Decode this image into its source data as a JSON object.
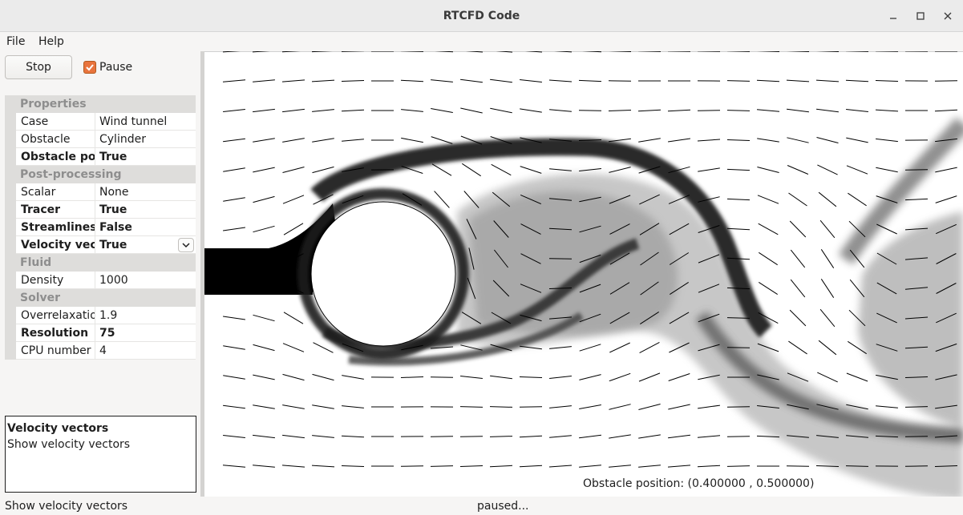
{
  "window": {
    "title": "RTCFD Code",
    "controls": [
      "minimize-icon",
      "maximize-icon",
      "close-icon"
    ]
  },
  "menu": {
    "file": "File",
    "help": "Help"
  },
  "toolbar": {
    "stop_label": "Stop",
    "pause_label": "Pause",
    "pause_checked": true
  },
  "properties": {
    "groups": [
      {
        "name": "Properties",
        "items": [
          {
            "name": "Case",
            "value": "Wind tunnel",
            "bold": false
          },
          {
            "name": "Obstacle",
            "value": "Cylinder",
            "bold": false
          },
          {
            "name": "Obstacle position",
            "value": "True",
            "bold": true
          }
        ]
      },
      {
        "name": "Post-processing",
        "items": [
          {
            "name": "Scalar",
            "value": "None",
            "bold": false
          },
          {
            "name": "Tracer",
            "value": "True",
            "bold": true
          },
          {
            "name": "Streamlines",
            "value": "False",
            "bold": true
          },
          {
            "name": "Velocity vectors",
            "value": "True",
            "bold": true,
            "dropdown": true
          }
        ]
      },
      {
        "name": "Fluid",
        "items": [
          {
            "name": "Density",
            "value": "1000",
            "bold": false
          }
        ]
      },
      {
        "name": "Solver",
        "items": [
          {
            "name": "Overrelaxation",
            "value": "1.9",
            "bold": false
          },
          {
            "name": "Resolution",
            "value": "75",
            "bold": true
          },
          {
            "name": "CPU number",
            "value": "4",
            "bold": false
          }
        ]
      }
    ]
  },
  "description": {
    "title": "Velocity vectors",
    "text": "Show velocity vectors"
  },
  "viewport": {
    "obstacle_position_label": "Obstacle position: (0.400000 , 0.500000)"
  },
  "status": {
    "left": "Show velocity vectors",
    "middle": "paused..."
  }
}
